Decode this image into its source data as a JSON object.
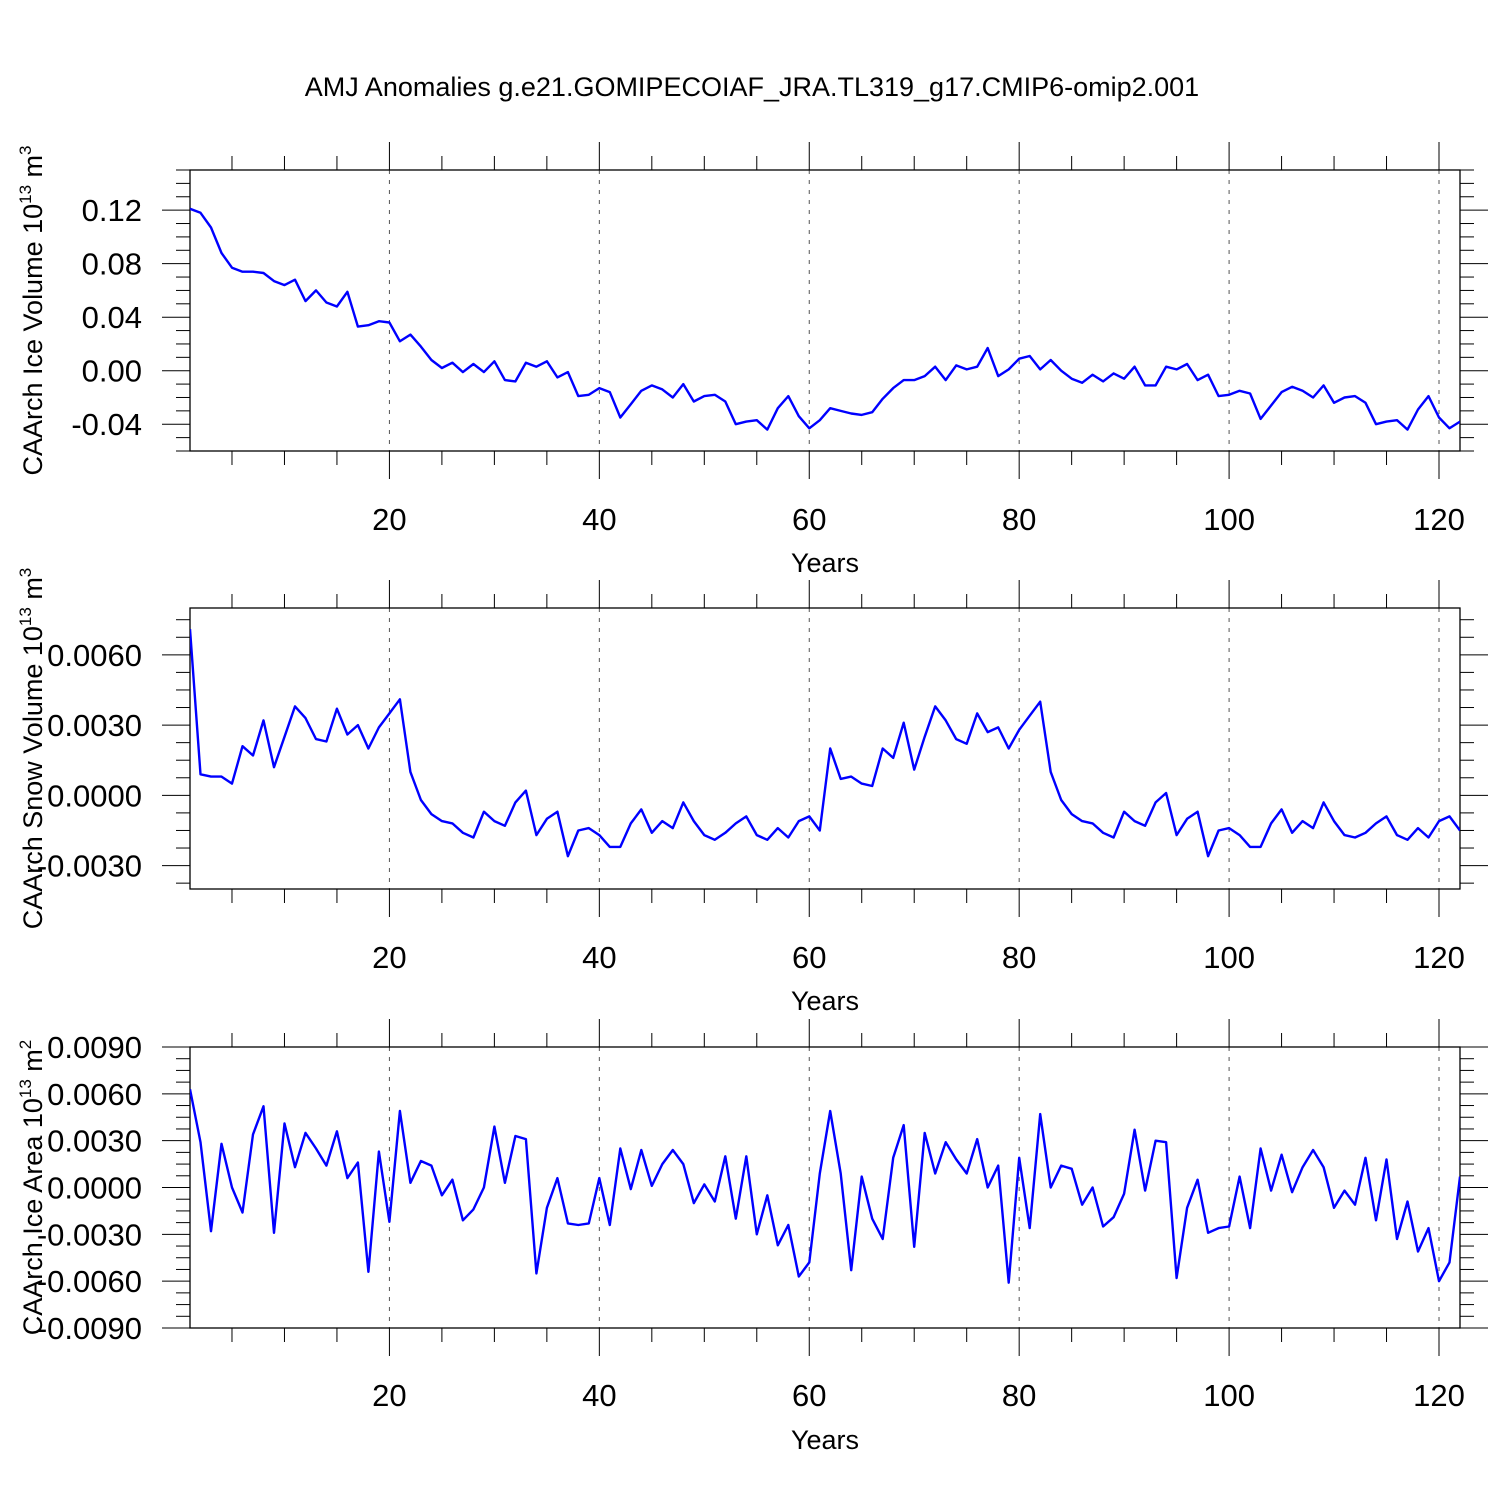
{
  "title": "AMJ Anomalies g.e21.GOMIPECOIAF_JRA.TL319_g17.CMIP6-omip2.001",
  "colors": {
    "line": "#0000ff",
    "axis": "#000000",
    "grid": "#555555",
    "background": "#ffffff"
  },
  "chart_data": [
    {
      "type": "line",
      "ylabel": "CAArch Ice Volume 10",
      "ylabel_sup": "13",
      "ylabel_unit": " m",
      "ylabel_unit_sup": "3",
      "xlabel": "Years",
      "xlim": [
        1,
        122
      ],
      "ylim": [
        -0.06,
        0.15
      ],
      "xticks": [
        20,
        40,
        60,
        80,
        100,
        120
      ],
      "yticks": [
        -0.04,
        0.0,
        0.04,
        0.08,
        0.12
      ],
      "ytick_labels": [
        "-0.04",
        "0.00",
        "0.04",
        "0.08",
        "0.12"
      ],
      "grid": "x-dashed",
      "x_start": 1,
      "values": [
        0.121,
        0.118,
        0.107,
        0.088,
        0.077,
        0.074,
        0.074,
        0.073,
        0.067,
        0.064,
        0.068,
        0.052,
        0.06,
        0.051,
        0.048,
        0.059,
        0.033,
        0.034,
        0.037,
        0.036,
        0.022,
        0.027,
        0.018,
        0.008,
        0.002,
        0.006,
        -0.001,
        0.005,
        -0.001,
        0.007,
        -0.007,
        -0.008,
        0.006,
        0.003,
        0.007,
        -0.005,
        -0.001,
        -0.019,
        -0.018,
        -0.013,
        -0.016,
        -0.035,
        -0.025,
        -0.015,
        -0.011,
        -0.014,
        -0.02,
        -0.01,
        -0.023,
        -0.019,
        -0.018,
        -0.023,
        -0.04,
        -0.038,
        -0.037,
        -0.044,
        -0.028,
        -0.019,
        -0.034,
        -0.043,
        -0.037,
        -0.028,
        -0.03,
        -0.032,
        -0.033,
        -0.031,
        -0.021,
        -0.013,
        -0.007,
        -0.007,
        -0.004,
        0.003,
        -0.007,
        0.004,
        0.001,
        0.003,
        0.017,
        -0.004,
        0.001,
        0.009,
        0.011,
        0.001,
        0.008,
        0.0,
        -0.006,
        -0.009,
        -0.003,
        -0.008,
        -0.002,
        -0.006,
        0.003,
        -0.011,
        -0.011,
        0.003,
        0.001,
        0.005,
        -0.007,
        -0.003,
        -0.019,
        -0.018,
        -0.015,
        -0.017,
        -0.036,
        -0.026,
        -0.016,
        -0.012,
        -0.015,
        -0.02,
        -0.011,
        -0.024,
        -0.02,
        -0.019,
        -0.024,
        -0.04,
        -0.038,
        -0.037,
        -0.044,
        -0.029,
        -0.019,
        -0.035,
        -0.043,
        -0.038
      ]
    },
    {
      "type": "line",
      "ylabel": "CAArch Snow Volume 10",
      "ylabel_sup": "13",
      "ylabel_unit": " m",
      "ylabel_unit_sup": "3",
      "xlabel": "Years",
      "xlim": [
        1,
        122
      ],
      "ylim": [
        -0.004,
        0.008
      ],
      "xticks": [
        20,
        40,
        60,
        80,
        100,
        120
      ],
      "yticks": [
        -0.003,
        0.0,
        0.003,
        0.006
      ],
      "ytick_labels": [
        "-0.0030",
        "0.0000",
        "0.0030",
        "0.0060"
      ],
      "grid": "x-dashed",
      "x_start": 1,
      "values": [
        0.0071,
        0.0009,
        0.0008,
        0.0008,
        0.0005,
        0.0021,
        0.0017,
        0.0032,
        0.0012,
        0.0025,
        0.0038,
        0.0033,
        0.0024,
        0.0023,
        0.0037,
        0.0026,
        0.003,
        0.002,
        0.0029,
        0.0035,
        0.0041,
        0.001,
        -0.0002,
        -0.0008,
        -0.0011,
        -0.0012,
        -0.0016,
        -0.0018,
        -0.0007,
        -0.0011,
        -0.0013,
        -0.0003,
        0.0002,
        -0.0017,
        -0.001,
        -0.0007,
        -0.0026,
        -0.0015,
        -0.0014,
        -0.0017,
        -0.0022,
        -0.0022,
        -0.0012,
        -0.0006,
        -0.0016,
        -0.0011,
        -0.0014,
        -0.0003,
        -0.0011,
        -0.0017,
        -0.0019,
        -0.0016,
        -0.0012,
        -0.0009,
        -0.0017,
        -0.0019,
        -0.0014,
        -0.0018,
        -0.0011,
        -0.0009,
        -0.0015,
        0.002,
        0.0007,
        0.0008,
        0.0005,
        0.0004,
        0.002,
        0.0016,
        0.0031,
        0.0011,
        0.0025,
        0.0038,
        0.0032,
        0.0024,
        0.0022,
        0.0035,
        0.0027,
        0.0029,
        0.002,
        0.0028,
        0.0034,
        0.004,
        0.001,
        -0.0002,
        -0.0008,
        -0.0011,
        -0.0012,
        -0.0016,
        -0.0018,
        -0.0007,
        -0.0011,
        -0.0013,
        -0.0003,
        0.0001,
        -0.0017,
        -0.001,
        -0.0007,
        -0.0026,
        -0.0015,
        -0.0014,
        -0.0017,
        -0.0022,
        -0.0022,
        -0.0012,
        -0.0006,
        -0.0016,
        -0.0011,
        -0.0014,
        -0.0003,
        -0.0011,
        -0.0017,
        -0.0018,
        -0.0016,
        -0.0012,
        -0.0009,
        -0.0017,
        -0.0019,
        -0.0014,
        -0.0018,
        -0.0011,
        -0.0009,
        -0.0015
      ]
    },
    {
      "type": "line",
      "ylabel": "CAArch Ice Area 10",
      "ylabel_sup": "13",
      "ylabel_unit": " m",
      "ylabel_unit_sup": "2",
      "xlabel": "Years",
      "xlim": [
        1,
        122
      ],
      "ylim": [
        -0.009,
        0.009
      ],
      "xticks": [
        20,
        40,
        60,
        80,
        100,
        120
      ],
      "yticks": [
        -0.009,
        -0.006,
        -0.003,
        0.0,
        0.003,
        0.006,
        0.009
      ],
      "ytick_labels": [
        "-0.0090",
        "-0.0060",
        "-0.0030",
        "0.0000",
        "0.0030",
        "0.0060",
        "0.0090"
      ],
      "grid": "x-dashed",
      "x_start": 1,
      "values": [
        0.0063,
        0.0029,
        -0.0028,
        0.0028,
        0.0,
        -0.0016,
        0.0034,
        0.0052,
        -0.0029,
        0.0041,
        0.0013,
        0.0035,
        0.0025,
        0.0014,
        0.0036,
        0.0006,
        0.0016,
        -0.0054,
        0.0023,
        -0.0022,
        0.0049,
        0.0003,
        0.0017,
        0.0014,
        -0.0005,
        0.0005,
        -0.0021,
        -0.0014,
        0.0,
        0.0039,
        0.0003,
        0.0033,
        0.0031,
        -0.0055,
        -0.0013,
        0.0006,
        -0.0023,
        -0.0024,
        -0.0023,
        0.0006,
        -0.0024,
        0.0025,
        -0.0001,
        0.0024,
        0.0001,
        0.0015,
        0.0024,
        0.0015,
        -0.001,
        0.0002,
        -0.0009,
        0.002,
        -0.002,
        0.002,
        -0.003,
        -0.0005,
        -0.0037,
        -0.0024,
        -0.0057,
        -0.0048,
        0.0009,
        0.0049,
        0.0009,
        -0.0053,
        0.0007,
        -0.002,
        -0.0033,
        0.0019,
        0.004,
        -0.0038,
        0.0035,
        0.0009,
        0.0029,
        0.0018,
        0.0009,
        0.0031,
        0.0,
        0.0014,
        -0.0061,
        0.0019,
        -0.0026,
        0.0047,
        0.0,
        0.0014,
        0.0012,
        -0.0011,
        0.0,
        -0.0025,
        -0.0019,
        -0.0004,
        0.0037,
        -0.0002,
        0.003,
        0.0029,
        -0.0058,
        -0.0013,
        0.0005,
        -0.0029,
        -0.0026,
        -0.0025,
        0.0007,
        -0.0026,
        0.0025,
        -0.0002,
        0.0021,
        -0.0003,
        0.0013,
        0.0024,
        0.0013,
        -0.0013,
        -0.0002,
        -0.0011,
        0.0019,
        -0.0021,
        0.0018,
        -0.0033,
        -0.0009,
        -0.0041,
        -0.0026,
        -0.006,
        -0.0048,
        0.0007
      ]
    }
  ]
}
